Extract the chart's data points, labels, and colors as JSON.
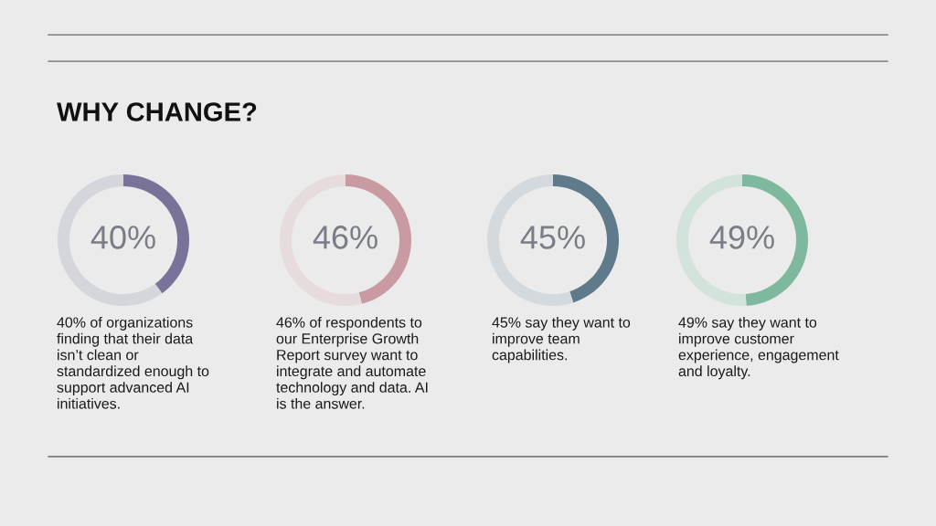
{
  "chart_data": [
    {
      "type": "donut",
      "title": "WHY CHANGE?",
      "categories": [
        null,
        null
      ],
      "values": [
        40,
        60
      ],
      "colors": [
        "#7a7399",
        "#d5d6db"
      ],
      "value_labels": [
        "40%",
        null
      ],
      "annotations": [
        "40% of organizations\nfinding that their data\nisn’t clean or\nstandardized enough to\nsupport advanced AI\ninitiatives."
      ]
    },
    {
      "type": "donut",
      "categories": [
        null,
        null
      ],
      "values": [
        46,
        54
      ],
      "colors": [
        "#c99aa1",
        "#e6dcdd"
      ],
      "value_labels": [
        "46%",
        null
      ],
      "annotations": [
        "46% of respondents to\nour Enterprise Growth\nReport survey want to\nintegrate and automate\ntechnology and data. AI\nis the answer."
      ]
    },
    {
      "type": "donut",
      "categories": [
        null,
        null
      ],
      "values": [
        45,
        55
      ],
      "colors": [
        "#5f7a8a",
        "#d4d9dd"
      ],
      "value_labels": [
        "45%",
        null
      ],
      "annotations": [
        "45% say they want to\nimprove team\ncapabilities."
      ]
    },
    {
      "type": "donut",
      "categories": [
        null,
        null
      ],
      "values": [
        49,
        51
      ],
      "colors": [
        "#7db89f",
        "#d2e3dc"
      ],
      "value_labels": [
        "49%",
        null
      ],
      "annotations": [
        "49% say they want to\nimprove customer\nexperience, engagement\nand loyalty."
      ]
    }
  ]
}
